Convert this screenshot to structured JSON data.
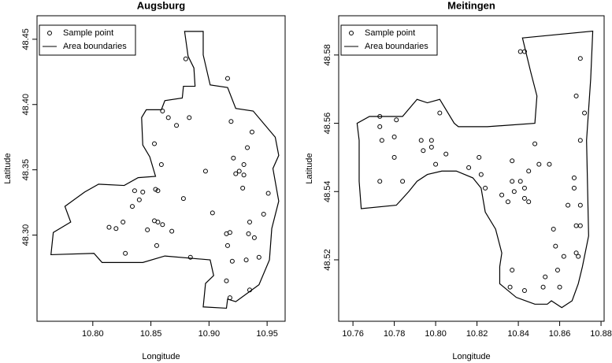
{
  "chart_data": [
    {
      "type": "scatter",
      "title": "Augsburg",
      "x_label": "Longitude",
      "y_label": "Latitude",
      "xlim": [
        10.752,
        10.9655
      ],
      "ylim": [
        48.234,
        48.468
      ],
      "xticks": [
        {
          "value": 10.8,
          "label": "10.80"
        },
        10.85,
        {
          "value": 10.9,
          "label": "10.90"
        },
        10.95
      ],
      "yticks": [
        {
          "value": 48.3,
          "label": "48.30"
        },
        48.35,
        {
          "value": 48.4,
          "label": "48.40"
        },
        48.45
      ],
      "legend": "topleft",
      "series": [
        {
          "name": "Sample point",
          "mark": "point",
          "color": "#000000",
          "x": [
            10.88,
            10.916,
            10.86,
            10.865,
            10.872,
            10.883,
            10.919,
            10.937,
            10.933,
            10.853,
            10.859,
            10.897,
            10.921,
            10.93,
            10.926,
            10.93,
            10.929,
            10.923,
            10.951,
            10.854,
            10.843,
            10.836,
            10.84,
            10.856,
            10.878,
            10.903,
            10.834,
            10.826,
            10.814,
            10.82,
            10.847,
            10.853,
            10.856,
            10.86,
            10.868,
            10.855,
            10.828,
            10.884,
            10.918,
            10.915,
            10.916,
            10.934,
            10.935,
            10.939,
            10.92,
            10.943,
            10.932,
            10.947,
            10.915,
            10.918,
            10.935
          ],
          "y": [
            48.435,
            48.42,
            48.395,
            48.39,
            48.384,
            48.39,
            48.387,
            48.379,
            48.367,
            48.37,
            48.354,
            48.349,
            48.359,
            48.354,
            48.349,
            48.346,
            48.336,
            48.347,
            48.332,
            48.335,
            48.333,
            48.334,
            48.327,
            48.334,
            48.328,
            48.317,
            48.322,
            48.31,
            48.306,
            48.305,
            48.304,
            48.311,
            48.31,
            48.308,
            48.303,
            48.292,
            48.286,
            48.283,
            48.302,
            48.301,
            48.292,
            48.301,
            48.31,
            48.298,
            48.28,
            48.283,
            48.281,
            48.316,
            48.265,
            48.252,
            48.258
          ]
        },
        {
          "name": "Area boundaries",
          "mark": "line",
          "color": "#000000",
          "x": [
            10.879,
            10.895,
            10.895,
            10.901,
            10.916,
            10.923,
            10.938,
            10.957,
            10.96,
            10.955,
            10.96,
            10.954,
            10.952,
            10.943,
            10.923,
            10.916,
            10.915,
            10.895,
            10.897,
            10.904,
            10.901,
            10.862,
            10.843,
            10.808,
            10.801,
            10.764,
            10.766,
            10.781,
            10.776,
            10.793,
            10.805,
            10.827,
            10.839,
            10.854,
            10.849,
            10.843,
            10.842,
            10.846,
            10.859,
            10.862,
            10.877,
            10.878,
            10.888,
            10.887,
            10.882
          ],
          "y": [
            48.456,
            48.456,
            48.438,
            48.415,
            48.413,
            48.397,
            48.395,
            48.375,
            48.361,
            48.351,
            48.326,
            48.305,
            48.281,
            48.262,
            48.249,
            48.251,
            48.244,
            48.245,
            48.263,
            48.269,
            48.281,
            48.284,
            48.279,
            48.279,
            48.286,
            48.285,
            48.302,
            48.31,
            48.322,
            48.333,
            48.339,
            48.338,
            48.344,
            48.345,
            48.36,
            48.369,
            48.39,
            48.396,
            48.396,
            48.403,
            48.405,
            48.414,
            48.414,
            48.428,
            48.437
          ]
        }
      ]
    },
    {
      "type": "scatter",
      "title": "Meitingen",
      "x_label": "Longitude",
      "y_label": "Latitude",
      "xlim": [
        10.7531,
        10.8815
      ],
      "ylim": [
        48.502,
        48.5915
      ],
      "xticks": [
        10.76,
        10.78,
        {
          "value": 10.8,
          "label": "10.80"
        },
        10.82,
        10.84,
        10.86,
        10.88
      ],
      "yticks": [
        48.52,
        48.54,
        48.56,
        48.58
      ],
      "legend": "topleft",
      "series": [
        {
          "name": "Sample point",
          "mark": "point",
          "color": "#000000",
          "x": [
            10.802,
            10.781,
            10.773,
            10.773,
            10.78,
            10.774,
            10.793,
            10.798,
            10.798,
            10.794,
            10.8,
            10.805,
            10.78,
            10.773,
            10.784,
            10.821,
            10.816,
            10.822,
            10.824,
            10.832,
            10.835,
            10.838,
            10.841,
            10.843,
            10.843,
            10.845,
            10.837,
            10.85,
            10.845,
            10.837,
            10.848,
            10.855,
            10.857,
            10.858,
            10.864,
            10.867,
            10.867,
            10.868,
            10.869,
            10.868,
            10.87,
            10.87,
            10.872,
            10.868,
            10.87,
            10.87,
            10.843,
            10.841,
            10.837,
            10.836,
            10.843,
            10.852,
            10.853,
            10.86,
            10.859,
            10.862
          ],
          "y": [
            48.563,
            48.561,
            48.562,
            48.559,
            48.556,
            48.555,
            48.555,
            48.555,
            48.553,
            48.552,
            48.548,
            48.551,
            48.55,
            48.543,
            48.543,
            48.55,
            48.547,
            48.545,
            48.541,
            48.539,
            48.537,
            48.54,
            48.543,
            48.541,
            48.538,
            48.537,
            48.543,
            48.548,
            48.546,
            48.549,
            48.554,
            48.548,
            48.529,
            48.524,
            48.536,
            48.544,
            48.541,
            48.53,
            48.521,
            48.522,
            48.536,
            48.53,
            48.563,
            48.568,
            48.555,
            48.579,
            48.581,
            48.581,
            48.517,
            48.512,
            48.511,
            48.512,
            48.515,
            48.512,
            48.517,
            48.521
          ]
        },
        {
          "name": "Area boundaries",
          "mark": "line",
          "color": "#000000",
          "x": [
            10.842,
            10.876,
            10.875,
            10.873,
            10.874,
            10.871,
            10.869,
            10.866,
            10.861,
            10.856,
            10.854,
            10.848,
            10.839,
            10.831,
            10.831,
            10.832,
            10.829,
            10.824,
            10.822,
            10.818,
            10.81,
            10.803,
            10.796,
            10.791,
            10.787,
            10.781,
            10.764,
            10.763,
            10.763,
            10.762,
            10.768,
            10.784,
            10.791,
            10.796,
            10.802,
            10.809,
            10.811,
            10.825,
            10.848,
            10.849,
            10.846,
            10.844
          ],
          "y": [
            48.585,
            48.587,
            48.573,
            48.555,
            48.527,
            48.518,
            48.513,
            48.508,
            48.506,
            48.508,
            48.507,
            48.507,
            48.509,
            48.513,
            48.518,
            48.522,
            48.529,
            48.534,
            48.541,
            48.544,
            48.546,
            48.546,
            48.545,
            48.543,
            48.54,
            48.536,
            48.535,
            48.543,
            48.555,
            48.56,
            48.562,
            48.562,
            48.567,
            48.566,
            48.567,
            48.56,
            48.559,
            48.559,
            48.56,
            48.568,
            48.575,
            48.58
          ]
        }
      ]
    }
  ]
}
